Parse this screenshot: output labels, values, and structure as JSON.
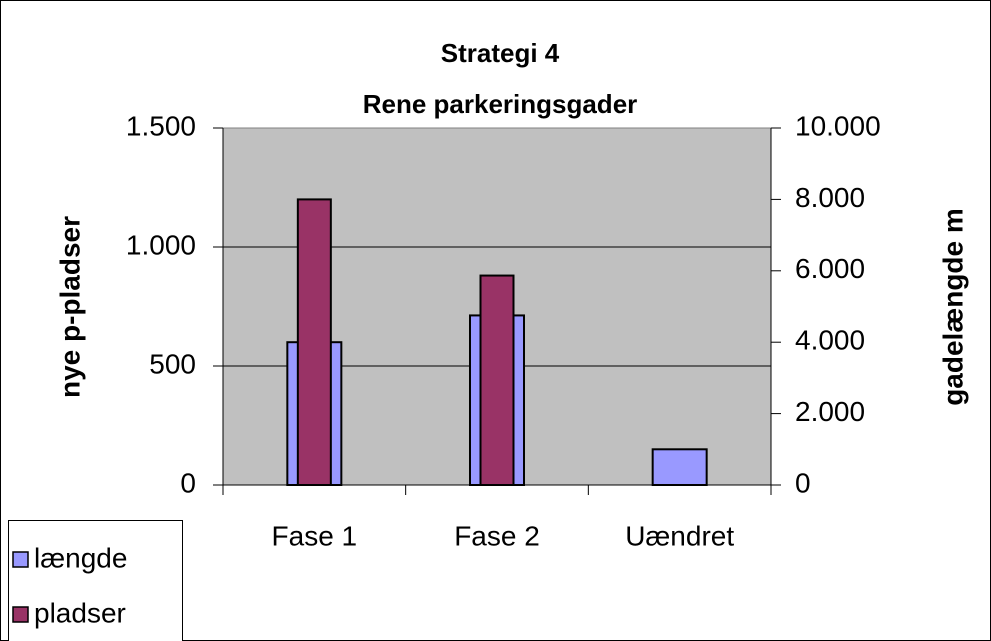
{
  "chart_data": {
    "type": "bar",
    "title": [
      "Strategi 4",
      "Rene parkeringsgader"
    ],
    "categories": [
      "Fase 1",
      "Fase 2",
      "Uændret"
    ],
    "series": [
      {
        "name": "længde",
        "color": "#9999ff",
        "axis": "y2",
        "values": [
          4000,
          4750,
          1000
        ]
      },
      {
        "name": "pladser",
        "color": "#993366",
        "axis": "y",
        "values": [
          1200,
          880,
          null
        ]
      }
    ],
    "ylabel": "nye p-pladser",
    "y2label": "gadelængde m",
    "ylim": [
      0,
      1500
    ],
    "yticks": [
      0,
      500,
      {
        "value": 1000,
        "label": "1.000"
      },
      {
        "value": 1500,
        "label": "1.500"
      }
    ],
    "y2lim": [
      0,
      10000
    ],
    "y2ticks": [
      0,
      {
        "value": 2000,
        "label": "2.000"
      },
      {
        "value": 4000,
        "label": "4.000"
      },
      {
        "value": 6000,
        "label": "6.000"
      },
      {
        "value": 8000,
        "label": "8.000"
      },
      {
        "value": 10000,
        "label": "10.000"
      }
    ],
    "grid": true,
    "plot_background": "#c0c0c0",
    "legend": "bottom-left"
  }
}
